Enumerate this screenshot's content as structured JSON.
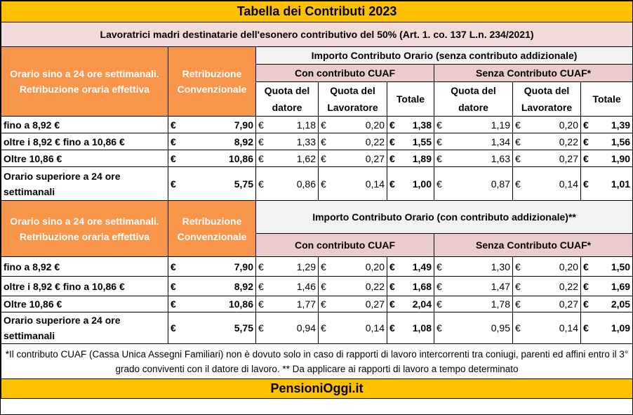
{
  "title": "Tabella dei Contributi 2023",
  "subtitle": "Lavoratrici madri destinatarie dell'esonero contributivo del 50% (Art. 1. co. 137 L.n. 234/2021)",
  "currency_symbol": "€",
  "section1": {
    "orario_header": "Orario sino a 24 ore settimanali. Retribuzione oraria effettiva",
    "retribuzione_header": "Retribuzione Convenzionale",
    "importo_header": "Importo Contributo Orario (senza contributo addizionale)",
    "con_cuaf": "Con contributo CUAF",
    "senza_cuaf": "Senza Contributo CUAF*",
    "quota_datore": "Quota del datore",
    "quota_lavoratore": "Quota del Lavoratore",
    "totale": "Totale",
    "rows": [
      {
        "label": "fino a 8,92 €",
        "retribuzione": "7,90",
        "con_datore": "1,18",
        "con_lav": "0,20",
        "con_tot": "1,38",
        "senza_datore": "1,19",
        "senza_lav": "0,20",
        "senza_tot": "1,39"
      },
      {
        "label": "oltre i 8,92 € fino a 10,86 €",
        "retribuzione": "8,92",
        "con_datore": "1,33",
        "con_lav": "0,22",
        "con_tot": "1,55",
        "senza_datore": "1,34",
        "senza_lav": "0,22",
        "senza_tot": "1,56"
      },
      {
        "label": "Oltre 10,86 €",
        "retribuzione": "10,86",
        "con_datore": "1,62",
        "con_lav": "0,27",
        "con_tot": "1,89",
        "senza_datore": "1,63",
        "senza_lav": "0,27",
        "senza_tot": "1,90"
      },
      {
        "label": "Orario superiore a 24 ore settimanali",
        "retribuzione": "5,75",
        "con_datore": "0,86",
        "con_lav": "0,14",
        "con_tot": "1,00",
        "senza_datore": "0,87",
        "senza_lav": "0,14",
        "senza_tot": "1,01"
      }
    ]
  },
  "section2": {
    "orario_header": "Orario sino a 24 ore settimanali. Retribuzione oraria effettiva",
    "retribuzione_header": "Retribuzione Convenzionale",
    "importo_header": "Importo Contributo Orario (con contributo addizionale)**",
    "con_cuaf": "Con contributo CUAF",
    "senza_cuaf": "Senza Contributo CUAF*",
    "rows": [
      {
        "label": "fino a 8,92 €",
        "retribuzione": "7,90",
        "con_datore": "1,29",
        "con_lav": "0,20",
        "con_tot": "1,49",
        "senza_datore": "1,30",
        "senza_lav": "0,20",
        "senza_tot": "1,50"
      },
      {
        "label": "oltre i 8,92 € fino a 10,86 €",
        "retribuzione": "8,92",
        "con_datore": "1,46",
        "con_lav": "0,22",
        "con_tot": "1,68",
        "senza_datore": "1,47",
        "senza_lav": "0,22",
        "senza_tot": "1,69"
      },
      {
        "label": "Oltre 10,86 €",
        "retribuzione": "10,86",
        "con_datore": "1,77",
        "con_lav": "0,27",
        "con_tot": "2,04",
        "senza_datore": "1,78",
        "senza_lav": "0,27",
        "senza_tot": "2,05"
      },
      {
        "label": "Orario superiore a 24 ore settimanali",
        "retribuzione": "5,75",
        "con_datore": "0,94",
        "con_lav": "0,14",
        "con_tot": "1,08",
        "senza_datore": "0,95",
        "senza_lav": "0,14",
        "senza_tot": "1,09"
      }
    ]
  },
  "footnote": "*Il contributo CUAF (Cassa Unica Assegni Familiari) non è dovuto solo in caso di rapporti di lavoro intercorrenti tra coniugi, parenti ed affini entro il 3° grado conviventi con il datore di lavoro. ** Da applicare ai rapporti di lavoro a tempo determinato",
  "brand": "PensioniOggi.it",
  "colors": {
    "title_bg": "#ffc000",
    "subtitle_bg": "#f2d9da",
    "header_orange": "#f7954a",
    "header_grey": "#f2f2f2",
    "header_pink": "#ebcbcc"
  }
}
